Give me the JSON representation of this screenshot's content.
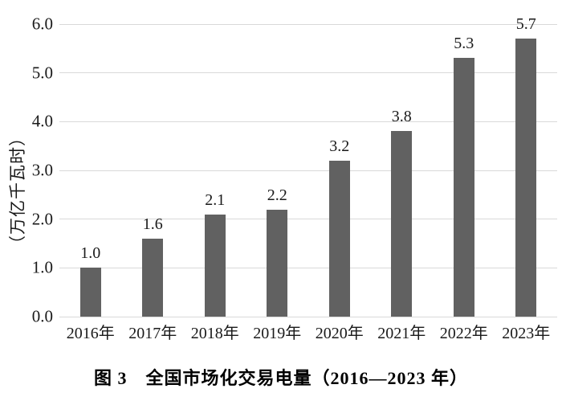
{
  "figure": {
    "caption": "图 3　全国市场化交易电量（2016—2023 年）"
  },
  "chart_data": {
    "type": "bar",
    "title": "图 3 全国市场化交易电量（2016—2023 年）",
    "categories": [
      "2016年",
      "2017年",
      "2018年",
      "2019年",
      "2020年",
      "2021年",
      "2022年",
      "2023年"
    ],
    "values": [
      1.0,
      1.6,
      2.1,
      2.2,
      3.2,
      3.8,
      5.3,
      5.7
    ],
    "bar_labels": [
      "1.0",
      "1.6",
      "2.1",
      "2.2",
      "3.2",
      "3.8",
      "5.3",
      "5.7"
    ],
    "xlabel": "",
    "ylabel": "（万亿千瓦时）",
    "ylim": [
      0,
      6
    ],
    "ytick_interval": 1.0,
    "ytick_labels": [
      "0.0",
      "1.0",
      "2.0",
      "3.0",
      "4.0",
      "5.0",
      "6.0"
    ],
    "grid": true,
    "legend": "none",
    "colors": {
      "bar": "#616161",
      "gridline": "#d9d9d9",
      "text": "#1a1a1a",
      "background": "#ffffff"
    }
  }
}
